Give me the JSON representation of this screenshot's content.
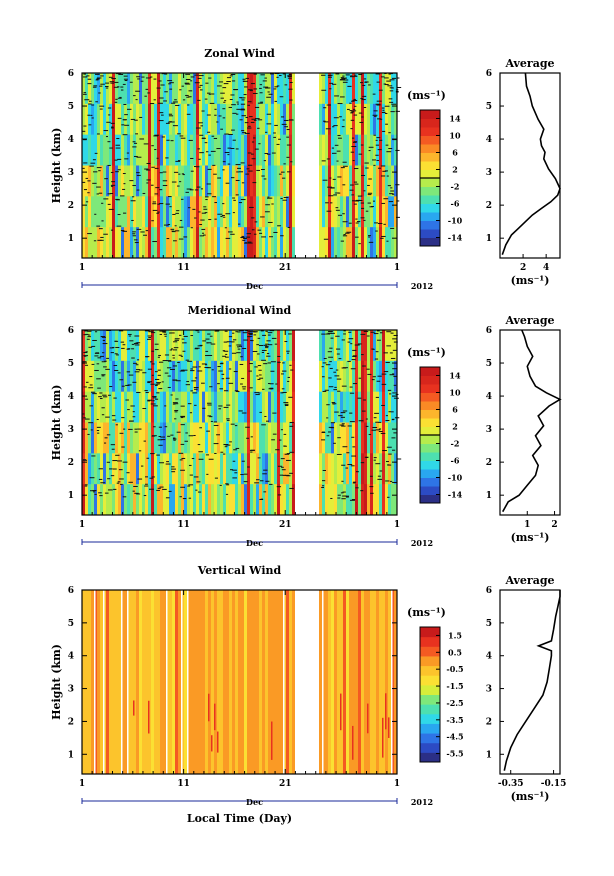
{
  "figure": {
    "year_label": "2012",
    "month_label": "Dec",
    "xlabel": "Local Time (Day)",
    "ylabel": "Height (km)",
    "x_ticks": [
      "1",
      "11",
      "21",
      "1"
    ],
    "y_ticks": [
      "1",
      "2",
      "3",
      "4",
      "5",
      "6"
    ],
    "unit_label": "(ms⁻¹)",
    "average_title": "Average"
  },
  "panels": [
    {
      "title": "Zonal Wind",
      "colorbar_ticks": [
        "14",
        "10",
        "6",
        "2",
        "-2",
        "-6",
        "-10",
        "-14"
      ],
      "colorbar_range": [
        -16,
        16
      ],
      "avg_x_ticks": [
        "2",
        "4"
      ],
      "avg_xlim": [
        0,
        5.2
      ]
    },
    {
      "title": "Meridional Wind",
      "colorbar_ticks": [
        "14",
        "10",
        "6",
        "2",
        "-2",
        "-6",
        "-10",
        "-14"
      ],
      "colorbar_range": [
        -16,
        16
      ],
      "avg_x_ticks": [
        "1",
        "2"
      ],
      "avg_xlim": [
        0,
        2.2
      ]
    },
    {
      "title": "Vertical Wind",
      "colorbar_ticks": [
        "1.5",
        "0.5",
        "-0.5",
        "-1.5",
        "-2.5",
        "-3.5",
        "-4.5",
        "-5.5"
      ],
      "colorbar_range": [
        -6,
        2
      ],
      "avg_x_ticks": [
        "-0.35",
        "-0.15"
      ],
      "avg_xlim": [
        -0.4,
        -0.12
      ]
    }
  ],
  "chart_data": [
    {
      "type": "heatmap",
      "title": "Zonal Wind",
      "xlabel": "Dec 2012",
      "ylabel": "Height (km)",
      "xlim": [
        1,
        32
      ],
      "ylim": [
        0.4,
        6
      ],
      "colorbar_label": "(ms⁻¹)",
      "colorbar_range": [
        -16,
        16
      ],
      "data_gap_days": [
        21.7,
        24.3
      ],
      "note": "time-height cross section"
    },
    {
      "type": "line",
      "title": "Average",
      "x": [
        0.2,
        0.5,
        1.0,
        1.6,
        2.2,
        2.8,
        3.6,
        4.4,
        5.0,
        5.2,
        4.8,
        4.2,
        3.8,
        3.9,
        3.6,
        3.5,
        3.8,
        3.3,
        2.8,
        2.6,
        2.3,
        2.2
      ],
      "y": [
        0.5,
        0.8,
        1.1,
        1.3,
        1.5,
        1.7,
        1.9,
        2.1,
        2.3,
        2.5,
        2.8,
        3.1,
        3.4,
        3.6,
        3.8,
        4.0,
        4.3,
        4.6,
        5.0,
        5.3,
        5.6,
        6.0
      ],
      "xlabel": "(ms⁻¹)",
      "ylabel": "Height (km)",
      "xlim": [
        0,
        5.2
      ],
      "ylim": [
        0.4,
        6
      ]
    },
    {
      "type": "heatmap",
      "title": "Meridional Wind",
      "xlabel": "Dec 2012",
      "ylabel": "Height (km)",
      "xlim": [
        1,
        32
      ],
      "ylim": [
        0.4,
        6
      ],
      "colorbar_label": "(ms⁻¹)",
      "colorbar_range": [
        -16,
        16
      ],
      "data_gap_days": [
        21.7,
        24.3
      ]
    },
    {
      "type": "line",
      "title": "Average",
      "x": [
        0.1,
        0.3,
        0.7,
        1.0,
        1.3,
        1.4,
        1.2,
        1.5,
        1.3,
        1.6,
        1.4,
        1.8,
        2.2,
        1.7,
        1.3,
        1.1,
        1.0,
        1.2,
        1.0,
        0.9,
        0.8
      ],
      "y": [
        0.5,
        0.8,
        1.0,
        1.3,
        1.6,
        1.9,
        2.2,
        2.5,
        2.8,
        3.1,
        3.4,
        3.7,
        3.9,
        4.1,
        4.3,
        4.6,
        4.9,
        5.2,
        5.5,
        5.8,
        6.0
      ],
      "xlabel": "(ms⁻¹)",
      "ylabel": "Height (km)",
      "xlim": [
        0,
        2.2
      ],
      "ylim": [
        0.4,
        6
      ]
    },
    {
      "type": "heatmap",
      "title": "Vertical Wind",
      "xlabel": "Local Time (Day)",
      "ylabel": "Height (km)",
      "xlim": [
        1,
        32
      ],
      "ylim": [
        0.4,
        6
      ],
      "colorbar_label": "(ms⁻¹)",
      "colorbar_range": [
        -6,
        2
      ],
      "data_gap_days": [
        21.7,
        24.3
      ]
    },
    {
      "type": "line",
      "title": "Average",
      "x": [
        -0.38,
        -0.37,
        -0.35,
        -0.32,
        -0.28,
        -0.24,
        -0.2,
        -0.18,
        -0.17,
        -0.16,
        -0.16,
        -0.22,
        -0.16,
        -0.15,
        -0.14,
        -0.13,
        -0.12,
        -0.12
      ],
      "y": [
        0.5,
        0.8,
        1.2,
        1.6,
        2.0,
        2.4,
        2.8,
        3.2,
        3.6,
        4.0,
        4.15,
        4.3,
        4.45,
        4.8,
        5.2,
        5.5,
        5.8,
        6.0
      ],
      "xlabel": "(ms⁻¹)",
      "ylabel": "Height (km)",
      "xlim": [
        -0.4,
        -0.12
      ],
      "ylim": [
        0.4,
        6
      ]
    }
  ]
}
